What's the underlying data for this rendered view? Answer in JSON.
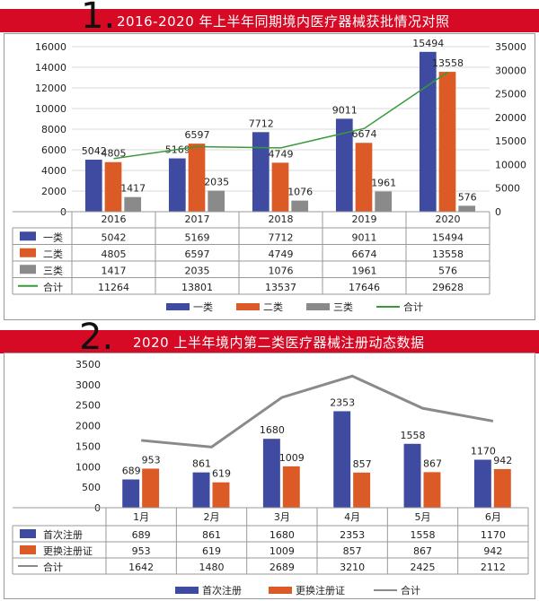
{
  "charts": [
    {
      "number": "1.",
      "title": "2016-2020 年上半年同期境内医疗器械获批情况对照",
      "chart_data": {
        "type": "bar",
        "categories": [
          "2016",
          "2017",
          "2018",
          "2019",
          "2020"
        ],
        "series": [
          {
            "name": "一类",
            "values": [
              5042,
              5169,
              7712,
              9011,
              15494
            ],
            "color": "#3f4aa1",
            "axis": "left"
          },
          {
            "name": "二类",
            "values": [
              4805,
              6597,
              4749,
              6674,
              13558
            ],
            "color": "#db5a25",
            "axis": "left"
          },
          {
            "name": "三类",
            "values": [
              1417,
              2035,
              1076,
              1961,
              576
            ],
            "color": "#8a8a8a",
            "axis": "left"
          },
          {
            "name": "合计",
            "values": [
              11264,
              13801,
              13537,
              17646,
              29628
            ],
            "color": "#3a9a3a",
            "type": "line",
            "axis": "right"
          }
        ],
        "ylim": [
          0,
          16000
        ],
        "yticks": [
          "0",
          "2000",
          "4000",
          "6000",
          "8000",
          "10000",
          "12000",
          "14000",
          "16000"
        ],
        "y2lim": [
          0,
          35000
        ],
        "y2ticks": [
          "0",
          "5000",
          "10000",
          "15000",
          "20000",
          "25000",
          "30000",
          "35000"
        ],
        "grid": true,
        "legend": "bottom",
        "table_below": true
      }
    },
    {
      "number": "2.",
      "title": "2020 上半年境内第二类医疗器械注册动态数据",
      "chart_data": {
        "type": "bar",
        "categories": [
          "1月",
          "2月",
          "3月",
          "4月",
          "5月",
          "6月"
        ],
        "series": [
          {
            "name": "首次注册",
            "values": [
              689,
              861,
              1680,
              2353,
              1558,
              1170
            ],
            "color": "#3f4aa1"
          },
          {
            "name": "更换注册证",
            "values": [
              953,
              619,
              1009,
              857,
              867,
              942
            ],
            "color": "#db5a25"
          },
          {
            "name": "合计",
            "values": [
              1642,
              1480,
              2689,
              3210,
              2425,
              2112
            ],
            "color": "#8a8a8a",
            "type": "line"
          }
        ],
        "ylim": [
          0,
          3500
        ],
        "yticks": [
          "0",
          "500",
          "1000",
          "1500",
          "2000",
          "2500",
          "3000",
          "3500"
        ],
        "grid": false,
        "legend": "bottom",
        "table_below": true
      }
    }
  ]
}
